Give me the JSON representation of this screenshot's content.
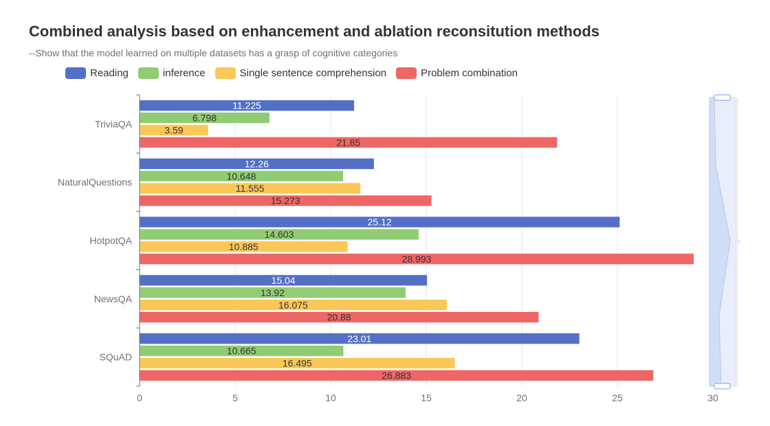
{
  "chart_data": {
    "type": "bar",
    "orientation": "horizontal",
    "title": "Combined analysis based on enhancement and ablation reconsitution methods",
    "subtitle": "--Show that the model learned on multiple datasets has a grasp of cognitive categories",
    "categories": [
      "TriviaQA",
      "NaturalQuestions",
      "HotpotQA",
      "NewsQA",
      "SQuAD"
    ],
    "series": [
      {
        "name": "Reading",
        "color": "#5470c6",
        "label_color": "#ffffff",
        "values": [
          11.225,
          12.26,
          25.12,
          15.04,
          23.01
        ]
      },
      {
        "name": "inference",
        "color": "#91cc75",
        "label_color": "#333333",
        "values": [
          6.798,
          10.648,
          14.603,
          13.92,
          10.665
        ]
      },
      {
        "name": "Single sentence comprehension",
        "color": "#fac858",
        "label_color": "#333333",
        "values": [
          3.59,
          11.555,
          10.885,
          16.075,
          16.495
        ]
      },
      {
        "name": "Problem combination",
        "color": "#ee6666",
        "label_color": "#333333",
        "values": [
          21.85,
          15.273,
          28.993,
          20.88,
          26.883
        ]
      }
    ],
    "xlim": [
      0,
      30
    ],
    "xticks": [
      0,
      5,
      10,
      15,
      20,
      25,
      30
    ],
    "grid": true,
    "legend_position": "top-left",
    "datazoom": "vertical-slider-right"
  }
}
